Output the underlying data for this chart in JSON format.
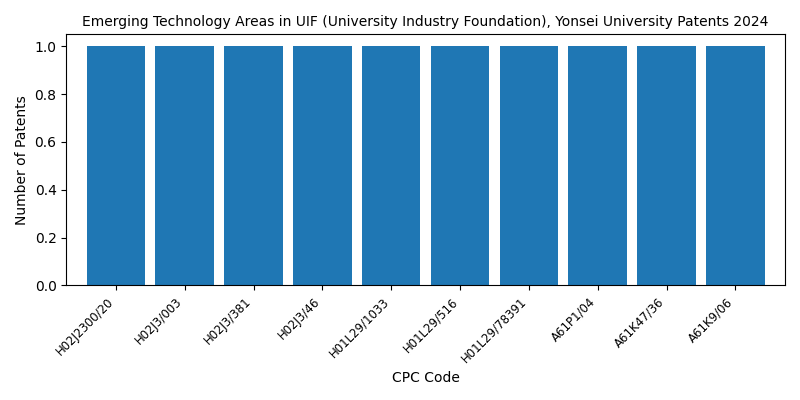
{
  "title": "Emerging Technology Areas in UIF (University Industry Foundation), Yonsei University Patents 2024",
  "xlabel": "CPC Code",
  "ylabel": "Number of Patents",
  "categories": [
    "H02J2300/20",
    "H02J3/003",
    "H02J3/381",
    "H02J3/46",
    "H01L29/1033",
    "H01L29/516",
    "H01L29/78391",
    "A61P1/04",
    "A61K47/36",
    "A61K9/06"
  ],
  "values": [
    1,
    1,
    1,
    1,
    1,
    1,
    1,
    1,
    1,
    1
  ],
  "bar_color": "#1f77b4",
  "ylim": [
    0,
    1.05
  ],
  "yticks": [
    0.0,
    0.2,
    0.4,
    0.6,
    0.8,
    1.0
  ],
  "figsize": [
    8.0,
    4.0
  ],
  "dpi": 100,
  "title_fontsize": 10,
  "bar_width": 0.85,
  "tick_fontsize": 8.5,
  "axis_label_fontsize": 10
}
